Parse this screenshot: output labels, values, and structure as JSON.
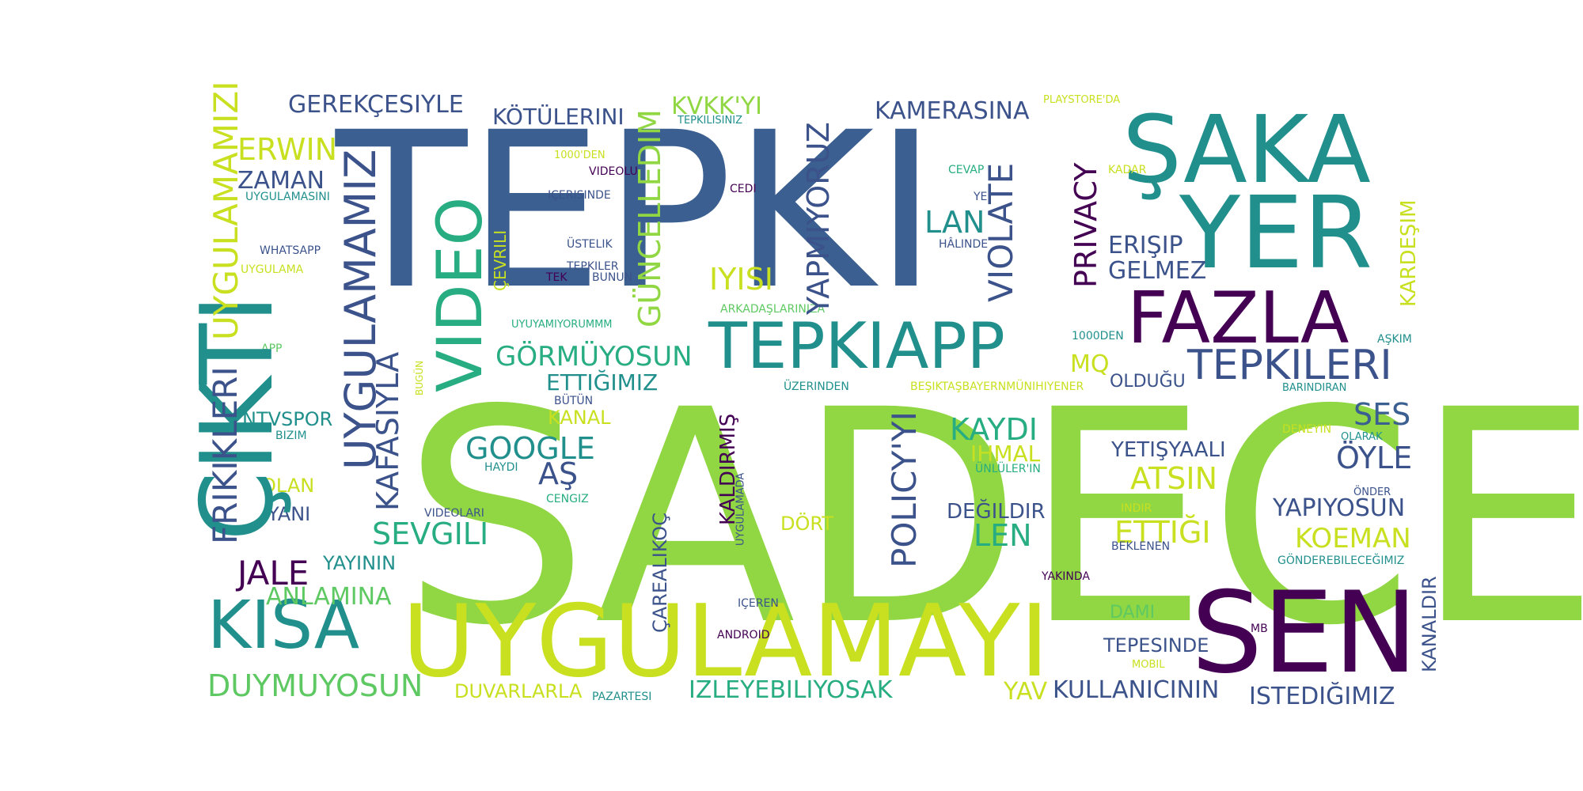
{
  "palette": {
    "dark_purple": "#440154",
    "indigo": "#3b528b",
    "steel_blue": "#3a5f90",
    "teal": "#21908d",
    "sea_green": "#27ad81",
    "green": "#5ec962",
    "lime": "#90d743",
    "yellow": "#c8e020"
  },
  "words": {
    "sadece": "SADECE",
    "tepki": "TEPKI",
    "uygulamayi": "UYGULAMAYI",
    "saka": "ŞAKA",
    "yer": "YER",
    "sen": "SEN",
    "cikti": "ÇIKTI",
    "tepkiapp": "TEPKIAPP",
    "fazla": "FAZLA",
    "kisa": "KISA",
    "video": "VIDEO",
    "tepkileri": "TEPKILERI",
    "uygulamamiz": "UYGULAMAMIZ",
    "uygulamamizi": "UYGULAMAMIZI",
    "frikikleri": "FRIKIKLERI",
    "yapmiyoruz": "YAPMIYORUZ",
    "guncelledim": "GÜNCELLEDIM",
    "kotulerini": "KÖTÜLERINI",
    "gerekcesiyle": "GEREKÇESIYLE",
    "kvkkyi": "KVKK'YI",
    "kamerasina": "KAMERASINA",
    "erwin": "ERWIN",
    "zaman": "ZAMAN",
    "privacy": "PRIVACY",
    "violate": "VIOLATE",
    "lan": "LAN",
    "erisip": "ERIŞIP",
    "gelmez": "GELMEZ",
    "iyisi": "IYISI",
    "gormuyosun": "GÖRMÜYOSUN",
    "ettigimiz": "ETTIĞIMIZ",
    "kafasiyla": "KAFASIYLA",
    "google": "GOOGLE",
    "as": "AŞ",
    "sevgili": "SEVGILI",
    "jale": "JALE",
    "anlamina": "ANLAMINA",
    "duymuyosun": "DUYMUYOSUN",
    "duvarlarla": "DUVARLARLA",
    "izleyebiliyosak": "IZLEYEBILIYOSAK",
    "kullanicinin": "KULLANICININ",
    "istedigimiz": "ISTEDIĞIMIZ",
    "kanaldir": "KANALDIR",
    "tepesinde": "TEPESINDE",
    "dami": "DAMI",
    "yav": "YAV",
    "koeman": "KOEMAN",
    "yapiyosun": "YAPIYOSUN",
    "oyle": "ÖYLE",
    "ses": "SES",
    "kardesim": "KARDEŞIM",
    "oldugu": "OLDUĞU",
    "mq": "MQ",
    "kaydi": "KAYDI",
    "ihmal": "IHMAL",
    "atsin": "ATSIN",
    "yetisyaali": "YETIŞYAALI",
    "ettigi": "ETTIĞI",
    "degildir": "DEĞILDIR",
    "len": "LEN",
    "policyyi": "POLICY'YI",
    "kaldirmis": "KALDIRMIŞ",
    "carealikoc": "ÇAREALIKOÇ",
    "dort": "DÖRT",
    "kanal": "KANAL",
    "ntvspor": "NTVSPOR",
    "olan": "OLAN",
    "yani": "YANI",
    "yayinin": "YAYININ",
    "playstoreda": "PLAYSTORE'DA",
    "tepkilisiniz": "TEPKILISINIZ",
    "yuzde1000den": "1000'DEN",
    "videolu": "VIDEOLU",
    "icerisinde": "IÇERISINDE",
    "cedi": "CEDI",
    "cevap": "CEVAP",
    "kadar": "KADAR",
    "ye": "YE",
    "halinde": "HÂLINDE",
    "ustelik": "ÜSTELIK",
    "tepkiler": "TEPKILER",
    "tek": "TEK",
    "bunun": "BUNUN",
    "cevrili": "ÇEVRILI",
    "uygulamasini": "UYGULAMASINI",
    "whatsapp": "WHATSAPP",
    "uygulama": "UYGULAMA",
    "arkadaslarinize": "ARKADAŞLARINIZA",
    "uyuyamiyorummm": "UYUYAMIYORUMMM",
    "bindden": "1000DEN",
    "askim": "AŞKIM",
    "app": "APP",
    "bugun": "BUGÜN",
    "uzerinden": "ÜZERINDEN",
    "besiktas": "BEŞIKTAŞBAYERNMÜNIHIYENER",
    "barindiran": "BARINDIRAN",
    "butun": "BÜTÜN",
    "bizim": "BIZIM",
    "haydi": "HAYDI",
    "cengiz": "CENGIZ",
    "uygulamada": "UYGULAMADA",
    "videolari": "VIDEOLARI",
    "deneyin": "DENEYIN",
    "olarak": "OLARAK",
    "unluler": "ÜNLÜLER'IN",
    "indir": "INDIR",
    "onder": "ÖNDER",
    "beklenen": "BEKLENEN",
    "gonderebilecegimiz": "GÖNDEREBILECEĞIMIZ",
    "yakinda": "YAKINDA",
    "iceren": "IÇEREN",
    "android": "ANDROID",
    "mb": "MB",
    "mobil": "MOBIL",
    "pazartesi": "PAZARTESI"
  }
}
